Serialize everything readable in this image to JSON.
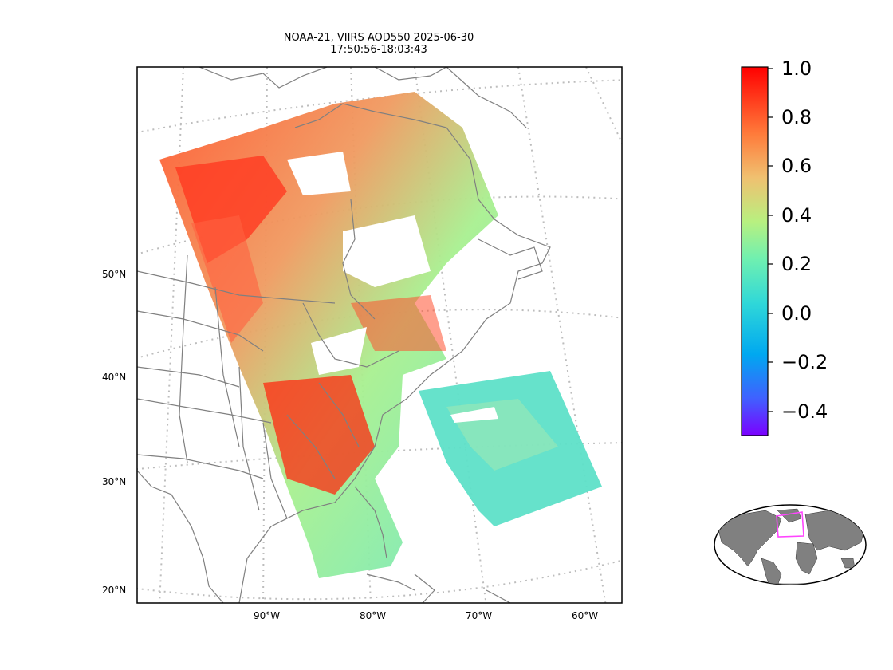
{
  "title": {
    "line1": "NOAA-21, VIIRS AOD550 2025-06-30",
    "line2": "17:50:56-18:03:43"
  },
  "map": {
    "variable": "AOD550",
    "lat_labels": [
      "50°N",
      "40°N",
      "30°N",
      "20°N"
    ],
    "lon_labels": [
      "90°W",
      "80°W",
      "70°W",
      "60°W"
    ],
    "land_outline_color": "#808080",
    "graticule_color": "#bdbdbd"
  },
  "colorbar": {
    "colormap": "rainbow",
    "min": -0.5,
    "max": 1.0,
    "ticks": [
      "1.0",
      "0.8",
      "0.6",
      "0.4",
      "0.2",
      "0.0",
      "−0.2",
      "−0.4"
    ],
    "colors": [
      "#ff0000",
      "#ff7a3a",
      "#f0c070",
      "#90fa90",
      "#40e8c8",
      "#20d0e0",
      "#00a8f0",
      "#4060ff",
      "#7b00ff"
    ]
  },
  "inset": {
    "name": "globe-locator",
    "land_color": "#808080",
    "box_color": "#ff44ff"
  }
}
